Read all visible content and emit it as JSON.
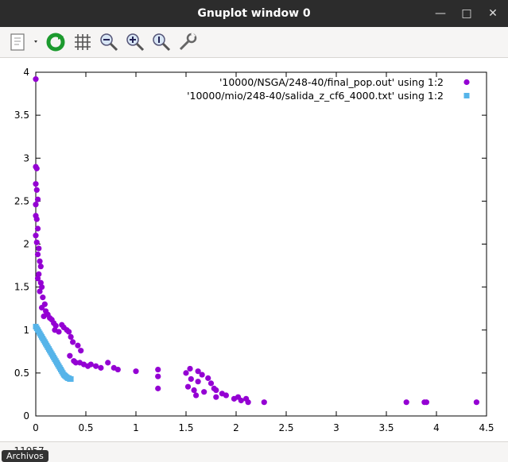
{
  "window": {
    "title": "Gnuplot window 0"
  },
  "icons": {
    "copy": "copy-icon",
    "replot": "replot-icon",
    "grid": "grid-icon",
    "zoom_out": "zoom-out-icon",
    "zoom_in": "zoom-in-icon",
    "zoom_reset": "zoom-reset-icon",
    "config": "config-icon"
  },
  "status": {
    "coords": "...11957",
    "tooltip": "Archivos"
  },
  "colors": {
    "series1": "#9400d3",
    "series2": "#56b4e9"
  },
  "chart_data": {
    "type": "scatter",
    "title": "",
    "xlabel": "",
    "ylabel": "",
    "xlim": [
      0,
      4.5
    ],
    "ylim": [
      0,
      4
    ],
    "grid": false,
    "legend_position": "top-right",
    "xticks": [
      "0",
      "0.5",
      "1",
      "1.5",
      "2",
      "2.5",
      "3",
      "3.5",
      "4",
      "4.5"
    ],
    "yticks": [
      "0",
      "0.5",
      "1",
      "1.5",
      "2",
      "2.5",
      "3",
      "3.5",
      "4"
    ],
    "series": [
      {
        "name": "'10000/NSGA/248-40/final_pop.out' using 1:2",
        "marker": "circle",
        "points": [
          [
            0.0,
            3.92
          ],
          [
            0.0,
            2.9
          ],
          [
            0.01,
            2.88
          ],
          [
            0.0,
            2.7
          ],
          [
            0.01,
            2.63
          ],
          [
            0.02,
            2.52
          ],
          [
            0.0,
            2.46
          ],
          [
            0.0,
            2.33
          ],
          [
            0.01,
            2.29
          ],
          [
            0.02,
            2.18
          ],
          [
            0.0,
            2.1
          ],
          [
            0.01,
            2.02
          ],
          [
            0.03,
            1.95
          ],
          [
            0.02,
            1.88
          ],
          [
            0.04,
            1.8
          ],
          [
            0.05,
            1.74
          ],
          [
            0.03,
            1.65
          ],
          [
            0.02,
            1.6
          ],
          [
            0.05,
            1.55
          ],
          [
            0.06,
            1.5
          ],
          [
            0.04,
            1.45
          ],
          [
            0.07,
            1.38
          ],
          [
            0.09,
            1.3
          ],
          [
            0.06,
            1.26
          ],
          [
            0.1,
            1.22
          ],
          [
            0.12,
            1.18
          ],
          [
            0.08,
            1.16
          ],
          [
            0.14,
            1.14
          ],
          [
            0.16,
            1.12
          ],
          [
            0.18,
            1.08
          ],
          [
            0.2,
            1.05
          ],
          [
            0.19,
            1.0
          ],
          [
            0.23,
            0.98
          ],
          [
            0.26,
            1.06
          ],
          [
            0.28,
            1.03
          ],
          [
            0.31,
            1.0
          ],
          [
            0.33,
            0.98
          ],
          [
            0.35,
            0.92
          ],
          [
            0.37,
            0.86
          ],
          [
            0.42,
            0.82
          ],
          [
            0.45,
            0.76
          ],
          [
            0.34,
            0.7
          ],
          [
            0.38,
            0.64
          ],
          [
            0.4,
            0.62
          ],
          [
            0.44,
            0.62
          ],
          [
            0.48,
            0.6
          ],
          [
            0.52,
            0.58
          ],
          [
            0.55,
            0.6
          ],
          [
            0.6,
            0.58
          ],
          [
            0.65,
            0.56
          ],
          [
            0.72,
            0.62
          ],
          [
            0.78,
            0.56
          ],
          [
            0.82,
            0.54
          ],
          [
            1.0,
            0.52
          ],
          [
            1.22,
            0.54
          ],
          [
            1.22,
            0.46
          ],
          [
            1.22,
            0.32
          ],
          [
            1.5,
            0.5
          ],
          [
            1.54,
            0.55
          ],
          [
            1.55,
            0.43
          ],
          [
            1.62,
            0.52
          ],
          [
            1.62,
            0.4
          ],
          [
            1.66,
            0.48
          ],
          [
            1.52,
            0.34
          ],
          [
            1.58,
            0.3
          ],
          [
            1.6,
            0.24
          ],
          [
            1.68,
            0.28
          ],
          [
            1.72,
            0.44
          ],
          [
            1.75,
            0.38
          ],
          [
            1.78,
            0.32
          ],
          [
            1.8,
            0.3
          ],
          [
            1.8,
            0.22
          ],
          [
            1.86,
            0.26
          ],
          [
            1.9,
            0.24
          ],
          [
            1.98,
            0.2
          ],
          [
            2.02,
            0.22
          ],
          [
            2.05,
            0.18
          ],
          [
            2.1,
            0.2
          ],
          [
            2.12,
            0.16
          ],
          [
            2.28,
            0.16
          ],
          [
            3.7,
            0.16
          ],
          [
            3.88,
            0.16
          ],
          [
            3.9,
            0.16
          ],
          [
            4.4,
            0.16
          ]
        ]
      },
      {
        "name": "'10000/mio/248-40/salida_z_cf6_4000.txt' using 1:2",
        "marker": "square",
        "points": [
          [
            0.0,
            1.04
          ],
          [
            0.01,
            1.02
          ],
          [
            0.02,
            1.0
          ],
          [
            0.03,
            0.98
          ],
          [
            0.04,
            0.96
          ],
          [
            0.05,
            0.94
          ],
          [
            0.06,
            0.92
          ],
          [
            0.07,
            0.9
          ],
          [
            0.08,
            0.88
          ],
          [
            0.09,
            0.86
          ],
          [
            0.1,
            0.84
          ],
          [
            0.11,
            0.82
          ],
          [
            0.12,
            0.8
          ],
          [
            0.13,
            0.78
          ],
          [
            0.14,
            0.76
          ],
          [
            0.15,
            0.74
          ],
          [
            0.16,
            0.72
          ],
          [
            0.17,
            0.7
          ],
          [
            0.18,
            0.68
          ],
          [
            0.19,
            0.66
          ],
          [
            0.2,
            0.64
          ],
          [
            0.21,
            0.62
          ],
          [
            0.22,
            0.6
          ],
          [
            0.23,
            0.58
          ],
          [
            0.24,
            0.56
          ],
          [
            0.25,
            0.54
          ],
          [
            0.26,
            0.52
          ],
          [
            0.27,
            0.5
          ],
          [
            0.28,
            0.48
          ],
          [
            0.29,
            0.47
          ],
          [
            0.3,
            0.46
          ],
          [
            0.31,
            0.45
          ],
          [
            0.32,
            0.44
          ],
          [
            0.33,
            0.44
          ],
          [
            0.34,
            0.43
          ],
          [
            0.35,
            0.43
          ]
        ]
      }
    ]
  }
}
